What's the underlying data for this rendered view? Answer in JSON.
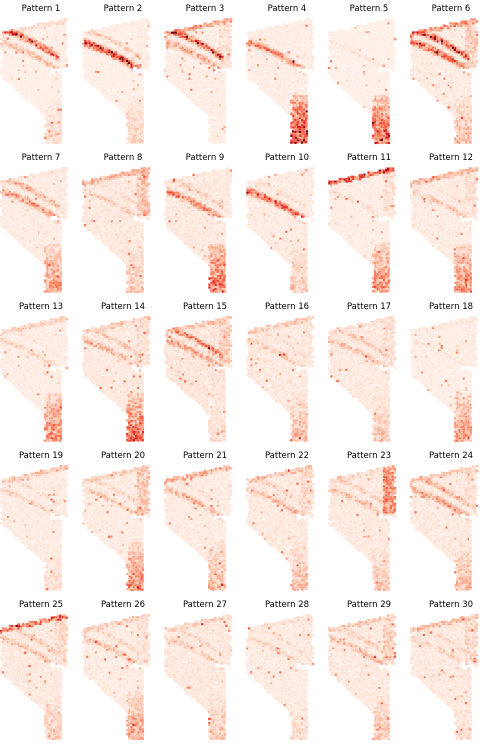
{
  "figure": {
    "colormap": "Reds",
    "colors": {
      "low": "#fff5f0",
      "mid": "#fc8a6a",
      "high": "#67000d",
      "background": "#ffffff"
    }
  },
  "chart_data": {
    "type": "heatmap",
    "layout": {
      "rows": 5,
      "columns": 6
    },
    "panels": [
      {
        "title": "Pattern 1",
        "emphasis": {
          "outer_band": 0.9,
          "inner_band": 0.35,
          "lower_stem": 0.2,
          "right_edge": 0.1,
          "upper_edge": 0.2,
          "background": 0.05
        }
      },
      {
        "title": "Pattern 2",
        "emphasis": {
          "outer_band": 0.3,
          "inner_band": 0.95,
          "lower_stem": 0.25,
          "right_edge": 0.1,
          "upper_edge": 0.1,
          "background": 0.05
        }
      },
      {
        "title": "Pattern 3",
        "emphasis": {
          "outer_band": 0.95,
          "inner_band": 0.45,
          "lower_stem": 0.05,
          "right_edge": 0.2,
          "upper_edge": 0.5,
          "background": 0.08
        }
      },
      {
        "title": "Pattern 4",
        "emphasis": {
          "outer_band": 0.1,
          "inner_band": 0.6,
          "lower_stem": 0.9,
          "right_edge": 0.05,
          "upper_edge": 0.05,
          "background": 0.08
        }
      },
      {
        "title": "Pattern 5",
        "emphasis": {
          "outer_band": 0.05,
          "inner_band": 0.15,
          "lower_stem": 0.75,
          "right_edge": 0.05,
          "upper_edge": 0.05,
          "background": 0.04
        }
      },
      {
        "title": "Pattern 6",
        "emphasis": {
          "outer_band": 0.95,
          "inner_band": 0.8,
          "lower_stem": 0.35,
          "right_edge": 0.3,
          "upper_edge": 0.6,
          "background": 0.1
        }
      },
      {
        "title": "Pattern 7",
        "emphasis": {
          "outer_band": 0.45,
          "inner_band": 0.55,
          "lower_stem": 0.5,
          "right_edge": 0.1,
          "upper_edge": 0.15,
          "background": 0.1
        }
      },
      {
        "title": "Pattern 8",
        "emphasis": {
          "outer_band": 0.2,
          "inner_band": 0.3,
          "lower_stem": 0.3,
          "right_edge": 0.35,
          "upper_edge": 0.45,
          "background": 0.12
        }
      },
      {
        "title": "Pattern 9",
        "emphasis": {
          "outer_band": 0.3,
          "inner_band": 0.65,
          "lower_stem": 0.7,
          "right_edge": 0.05,
          "upper_edge": 0.1,
          "background": 0.12
        }
      },
      {
        "title": "Pattern 10",
        "emphasis": {
          "outer_band": 0.2,
          "inner_band": 0.8,
          "lower_stem": 0.3,
          "right_edge": 0.05,
          "upper_edge": 0.1,
          "background": 0.1
        }
      },
      {
        "title": "Pattern 11",
        "emphasis": {
          "outer_band": 0.1,
          "inner_band": 0.2,
          "lower_stem": 0.55,
          "right_edge": 0.2,
          "upper_edge": 0.85,
          "background": 0.08
        }
      },
      {
        "title": "Pattern 12",
        "emphasis": {
          "outer_band": 0.15,
          "inner_band": 0.3,
          "lower_stem": 0.55,
          "right_edge": 0.2,
          "upper_edge": 0.4,
          "background": 0.1
        }
      },
      {
        "title": "Pattern 13",
        "emphasis": {
          "outer_band": 0.15,
          "inner_band": 0.25,
          "lower_stem": 0.6,
          "right_edge": 0.1,
          "upper_edge": 0.3,
          "background": 0.08
        }
      },
      {
        "title": "Pattern 14",
        "emphasis": {
          "outer_band": 0.35,
          "inner_band": 0.4,
          "lower_stem": 0.7,
          "right_edge": 0.2,
          "upper_edge": 0.3,
          "background": 0.12
        }
      },
      {
        "title": "Pattern 15",
        "emphasis": {
          "outer_band": 0.65,
          "inner_band": 0.5,
          "lower_stem": 0.2,
          "right_edge": 0.3,
          "upper_edge": 0.35,
          "background": 0.15
        }
      },
      {
        "title": "Pattern 16",
        "emphasis": {
          "outer_band": 0.2,
          "inner_band": 0.3,
          "lower_stem": 0.35,
          "right_edge": 0.15,
          "upper_edge": 0.3,
          "background": 0.12
        }
      },
      {
        "title": "Pattern 17",
        "emphasis": {
          "outer_band": 0.3,
          "inner_band": 0.35,
          "lower_stem": 0.3,
          "right_edge": 0.2,
          "upper_edge": 0.2,
          "background": 0.12
        }
      },
      {
        "title": "Pattern 18",
        "emphasis": {
          "outer_band": 0.1,
          "inner_band": 0.15,
          "lower_stem": 0.5,
          "right_edge": 0.1,
          "upper_edge": 0.15,
          "background": 0.07
        }
      },
      {
        "title": "Pattern 19",
        "emphasis": {
          "outer_band": 0.2,
          "inner_band": 0.25,
          "lower_stem": 0.2,
          "right_edge": 0.1,
          "upper_edge": 0.35,
          "background": 0.1
        }
      },
      {
        "title": "Pattern 20",
        "emphasis": {
          "outer_band": 0.25,
          "inner_band": 0.3,
          "lower_stem": 0.55,
          "right_edge": 0.35,
          "upper_edge": 0.3,
          "background": 0.1
        }
      },
      {
        "title": "Pattern 21",
        "emphasis": {
          "outer_band": 0.2,
          "inner_band": 0.4,
          "lower_stem": 0.35,
          "right_edge": 0.1,
          "upper_edge": 0.45,
          "background": 0.1
        }
      },
      {
        "title": "Pattern 22",
        "emphasis": {
          "outer_band": 0.3,
          "inner_band": 0.4,
          "lower_stem": 0.35,
          "right_edge": 0.25,
          "upper_edge": 0.35,
          "background": 0.12
        }
      },
      {
        "title": "Pattern 23",
        "emphasis": {
          "outer_band": 0.3,
          "inner_band": 0.35,
          "lower_stem": 0.3,
          "right_edge": 0.6,
          "upper_edge": 0.25,
          "background": 0.12
        }
      },
      {
        "title": "Pattern 24",
        "emphasis": {
          "outer_band": 0.4,
          "inner_band": 0.5,
          "lower_stem": 0.35,
          "right_edge": 0.2,
          "upper_edge": 0.3,
          "background": 0.12
        }
      },
      {
        "title": "Pattern 25",
        "emphasis": {
          "outer_band": 0.3,
          "inner_band": 0.35,
          "lower_stem": 0.3,
          "right_edge": 0.25,
          "upper_edge": 0.75,
          "background": 0.12
        }
      },
      {
        "title": "Pattern 26",
        "emphasis": {
          "outer_band": 0.25,
          "inner_band": 0.35,
          "lower_stem": 0.45,
          "right_edge": 0.2,
          "upper_edge": 0.3,
          "background": 0.1
        }
      },
      {
        "title": "Pattern 27",
        "emphasis": {
          "outer_band": 0.25,
          "inner_band": 0.3,
          "lower_stem": 0.3,
          "right_edge": 0.15,
          "upper_edge": 0.3,
          "background": 0.12
        }
      },
      {
        "title": "Pattern 28",
        "emphasis": {
          "outer_band": 0.2,
          "inner_band": 0.25,
          "lower_stem": 0.2,
          "right_edge": 0.15,
          "upper_edge": 0.2,
          "background": 0.1
        }
      },
      {
        "title": "Pattern 29",
        "emphasis": {
          "outer_band": 0.3,
          "inner_band": 0.35,
          "lower_stem": 0.3,
          "right_edge": 0.3,
          "upper_edge": 0.3,
          "background": 0.12
        }
      },
      {
        "title": "Pattern 30",
        "emphasis": {
          "outer_band": 0.25,
          "inner_band": 0.25,
          "lower_stem": 0.2,
          "right_edge": 0.25,
          "upper_edge": 0.35,
          "background": 0.12
        }
      }
    ]
  }
}
